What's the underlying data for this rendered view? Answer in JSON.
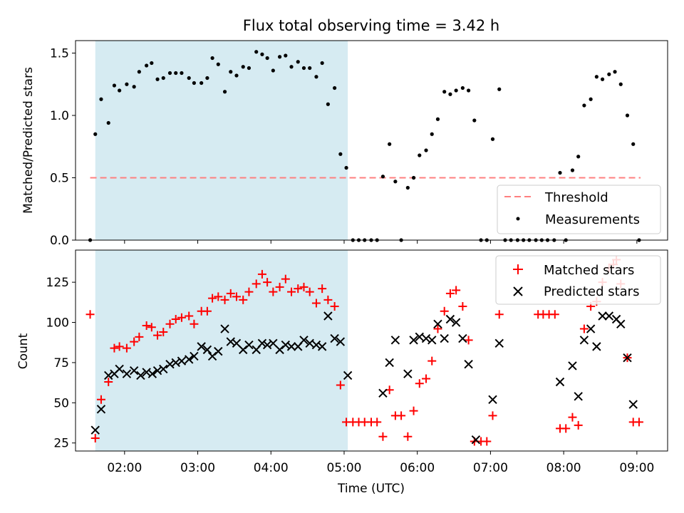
{
  "title": "Flux total observing time = 3.42 h",
  "colors": {
    "highlight": "#add8e6",
    "threshold": "#ff7f7f",
    "matched": "#ff0000",
    "predicted": "#000000",
    "measurement": "#000000"
  },
  "chart_data": [
    {
      "type": "scatter",
      "ylabel": "Matched/Predicted stars",
      "ylim": [
        0,
        1.6
      ],
      "yticks": [
        "0.0",
        "0.5",
        "1.0",
        "1.5"
      ],
      "xlim": [
        1.33,
        9.42
      ],
      "highlight_span": [
        1.6,
        5.05
      ],
      "threshold": 0.5,
      "legend": {
        "position": "lower-right",
        "threshold_label": "Threshold",
        "measurements_label": "Measurements"
      },
      "series": [
        {
          "name": "Measurements",
          "points": [
            [
              1.53,
              0.0
            ],
            [
              1.6,
              0.85
            ],
            [
              1.68,
              1.13
            ],
            [
              1.78,
              0.94
            ],
            [
              1.86,
              1.24
            ],
            [
              1.93,
              1.2
            ],
            [
              2.03,
              1.25
            ],
            [
              2.13,
              1.23
            ],
            [
              2.2,
              1.35
            ],
            [
              2.3,
              1.4
            ],
            [
              2.37,
              1.42
            ],
            [
              2.45,
              1.29
            ],
            [
              2.53,
              1.3
            ],
            [
              2.62,
              1.34
            ],
            [
              2.7,
              1.34
            ],
            [
              2.78,
              1.34
            ],
            [
              2.88,
              1.3
            ],
            [
              2.95,
              1.26
            ],
            [
              3.05,
              1.26
            ],
            [
              3.13,
              1.3
            ],
            [
              3.2,
              1.46
            ],
            [
              3.28,
              1.41
            ],
            [
              3.37,
              1.19
            ],
            [
              3.45,
              1.35
            ],
            [
              3.53,
              1.32
            ],
            [
              3.62,
              1.39
            ],
            [
              3.7,
              1.38
            ],
            [
              3.8,
              1.51
            ],
            [
              3.88,
              1.49
            ],
            [
              3.95,
              1.46
            ],
            [
              4.03,
              1.36
            ],
            [
              4.12,
              1.47
            ],
            [
              4.2,
              1.48
            ],
            [
              4.28,
              1.39
            ],
            [
              4.37,
              1.43
            ],
            [
              4.45,
              1.38
            ],
            [
              4.53,
              1.38
            ],
            [
              4.62,
              1.31
            ],
            [
              4.7,
              1.42
            ],
            [
              4.78,
              1.09
            ],
            [
              4.87,
              1.22
            ],
            [
              4.95,
              0.69
            ],
            [
              5.03,
              0.58
            ],
            [
              5.12,
              0.0
            ],
            [
              5.2,
              0.0
            ],
            [
              5.28,
              0.0
            ],
            [
              5.37,
              0.0
            ],
            [
              5.45,
              0.0
            ],
            [
              5.53,
              0.51
            ],
            [
              5.62,
              0.77
            ],
            [
              5.7,
              0.47
            ],
            [
              5.78,
              0.0
            ],
            [
              5.87,
              0.42
            ],
            [
              5.95,
              0.5
            ],
            [
              6.03,
              0.68
            ],
            [
              6.12,
              0.72
            ],
            [
              6.2,
              0.85
            ],
            [
              6.28,
              0.97
            ],
            [
              6.37,
              1.19
            ],
            [
              6.45,
              1.17
            ],
            [
              6.53,
              1.2
            ],
            [
              6.62,
              1.22
            ],
            [
              6.7,
              1.2
            ],
            [
              6.78,
              0.96
            ],
            [
              6.87,
              0.0
            ],
            [
              6.95,
              0.0
            ],
            [
              7.03,
              0.81
            ],
            [
              7.12,
              1.21
            ],
            [
              7.2,
              0.0
            ],
            [
              7.28,
              0.0
            ],
            [
              7.37,
              0.0
            ],
            [
              7.45,
              0.0
            ],
            [
              7.53,
              0.0
            ],
            [
              7.62,
              0.0
            ],
            [
              7.7,
              0.0
            ],
            [
              7.78,
              0.0
            ],
            [
              7.87,
              0.0
            ],
            [
              7.95,
              0.54
            ],
            [
              8.03,
              0.0
            ],
            [
              8.12,
              0.56
            ],
            [
              8.2,
              0.67
            ],
            [
              8.28,
              1.08
            ],
            [
              8.37,
              1.13
            ],
            [
              8.45,
              1.31
            ],
            [
              8.53,
              1.29
            ],
            [
              8.62,
              1.33
            ],
            [
              8.7,
              1.35
            ],
            [
              8.78,
              1.25
            ],
            [
              8.87,
              1.0
            ],
            [
              8.95,
              0.77
            ],
            [
              9.03,
              0.0
            ]
          ]
        }
      ]
    },
    {
      "type": "scatter",
      "ylabel": "Count",
      "xlabel": "Time (UTC)",
      "ylim": [
        20,
        145
      ],
      "yticks": [
        "25",
        "50",
        "75",
        "100",
        "125"
      ],
      "xlim": [
        1.33,
        9.42
      ],
      "xticks": [
        "02:00",
        "03:00",
        "04:00",
        "05:00",
        "06:00",
        "07:00",
        "08:00",
        "09:00"
      ],
      "highlight_span": [
        1.6,
        5.05
      ],
      "legend": {
        "position": "upper-right",
        "matched_label": "Matched stars",
        "predicted_label": "Predicted stars"
      },
      "series": [
        {
          "name": "Matched stars",
          "points": [
            [
              1.53,
              105
            ],
            [
              1.6,
              28
            ],
            [
              1.68,
              52
            ],
            [
              1.78,
              63
            ],
            [
              1.86,
              84
            ],
            [
              1.93,
              85
            ],
            [
              2.03,
              84
            ],
            [
              2.13,
              88
            ],
            [
              2.2,
              91
            ],
            [
              2.3,
              98
            ],
            [
              2.37,
              97
            ],
            [
              2.45,
              92
            ],
            [
              2.53,
              94
            ],
            [
              2.62,
              99
            ],
            [
              2.7,
              102
            ],
            [
              2.78,
              103
            ],
            [
              2.88,
              104
            ],
            [
              2.95,
              99
            ],
            [
              3.05,
              107
            ],
            [
              3.13,
              107
            ],
            [
              3.2,
              115
            ],
            [
              3.28,
              116
            ],
            [
              3.37,
              114
            ],
            [
              3.45,
              118
            ],
            [
              3.53,
              116
            ],
            [
              3.62,
              114
            ],
            [
              3.7,
              119
            ],
            [
              3.8,
              124
            ],
            [
              3.88,
              130
            ],
            [
              3.95,
              125
            ],
            [
              4.03,
              119
            ],
            [
              4.12,
              122
            ],
            [
              4.2,
              127
            ],
            [
              4.28,
              119
            ],
            [
              4.37,
              121
            ],
            [
              4.45,
              122
            ],
            [
              4.53,
              119
            ],
            [
              4.62,
              112
            ],
            [
              4.7,
              121
            ],
            [
              4.78,
              114
            ],
            [
              4.87,
              110
            ],
            [
              4.95,
              61
            ],
            [
              5.03,
              38
            ],
            [
              5.12,
              38
            ],
            [
              5.2,
              38
            ],
            [
              5.28,
              38
            ],
            [
              5.37,
              38
            ],
            [
              5.45,
              38
            ],
            [
              5.53,
              29
            ],
            [
              5.62,
              58
            ],
            [
              5.7,
              42
            ],
            [
              5.78,
              42
            ],
            [
              5.87,
              29
            ],
            [
              5.95,
              45
            ],
            [
              6.03,
              62
            ],
            [
              6.12,
              65
            ],
            [
              6.2,
              76
            ],
            [
              6.28,
              96
            ],
            [
              6.37,
              107
            ],
            [
              6.45,
              118
            ],
            [
              6.53,
              120
            ],
            [
              6.62,
              110
            ],
            [
              6.7,
              89
            ],
            [
              6.78,
              26
            ],
            [
              6.87,
              26
            ],
            [
              6.95,
              26
            ],
            [
              7.03,
              42
            ],
            [
              7.12,
              105
            ],
            [
              7.65,
              105
            ],
            [
              7.72,
              105
            ],
            [
              7.8,
              105
            ],
            [
              7.88,
              105
            ],
            [
              7.95,
              34
            ],
            [
              8.03,
              34
            ],
            [
              8.12,
              41
            ],
            [
              8.2,
              36
            ],
            [
              8.28,
              96
            ],
            [
              8.37,
              110
            ],
            [
              8.45,
              113
            ],
            [
              8.53,
              125
            ],
            [
              8.62,
              134
            ],
            [
              8.68,
              136
            ],
            [
              8.72,
              139
            ],
            [
              8.78,
              124
            ],
            [
              8.87,
              78
            ],
            [
              8.95,
              38
            ],
            [
              9.03,
              38
            ]
          ]
        },
        {
          "name": "Predicted stars",
          "points": [
            [
              1.6,
              33
            ],
            [
              1.68,
              46
            ],
            [
              1.78,
              67
            ],
            [
              1.86,
              68
            ],
            [
              1.93,
              71
            ],
            [
              2.03,
              68
            ],
            [
              2.13,
              70
            ],
            [
              2.22,
              67
            ],
            [
              2.3,
              69
            ],
            [
              2.38,
              68
            ],
            [
              2.45,
              70
            ],
            [
              2.53,
              71
            ],
            [
              2.62,
              74
            ],
            [
              2.7,
              75
            ],
            [
              2.78,
              76
            ],
            [
              2.88,
              77
            ],
            [
              2.95,
              79
            ],
            [
              3.05,
              85
            ],
            [
              3.13,
              83
            ],
            [
              3.2,
              79
            ],
            [
              3.28,
              82
            ],
            [
              3.37,
              96
            ],
            [
              3.45,
              88
            ],
            [
              3.53,
              87
            ],
            [
              3.62,
              83
            ],
            [
              3.7,
              86
            ],
            [
              3.8,
              83
            ],
            [
              3.88,
              87
            ],
            [
              3.95,
              86
            ],
            [
              4.03,
              87
            ],
            [
              4.12,
              83
            ],
            [
              4.2,
              86
            ],
            [
              4.28,
              85
            ],
            [
              4.37,
              85
            ],
            [
              4.45,
              89
            ],
            [
              4.53,
              87
            ],
            [
              4.62,
              86
            ],
            [
              4.7,
              85
            ],
            [
              4.78,
              104
            ],
            [
              4.87,
              90
            ],
            [
              4.95,
              88
            ],
            [
              5.05,
              67
            ],
            [
              5.53,
              56
            ],
            [
              5.62,
              75
            ],
            [
              5.7,
              89
            ],
            [
              5.87,
              68
            ],
            [
              5.95,
              89
            ],
            [
              6.03,
              91
            ],
            [
              6.12,
              90
            ],
            [
              6.2,
              89
            ],
            [
              6.28,
              99
            ],
            [
              6.37,
              90
            ],
            [
              6.45,
              102
            ],
            [
              6.53,
              100
            ],
            [
              6.62,
              90
            ],
            [
              6.7,
              74
            ],
            [
              6.8,
              27
            ],
            [
              7.03,
              52
            ],
            [
              7.12,
              87
            ],
            [
              7.95,
              63
            ],
            [
              8.12,
              73
            ],
            [
              8.2,
              54
            ],
            [
              8.28,
              89
            ],
            [
              8.37,
              96
            ],
            [
              8.45,
              85
            ],
            [
              8.53,
              104
            ],
            [
              8.62,
              104
            ],
            [
              8.72,
              102
            ],
            [
              8.78,
              99
            ],
            [
              8.87,
              78
            ],
            [
              8.95,
              49
            ]
          ]
        }
      ]
    }
  ]
}
